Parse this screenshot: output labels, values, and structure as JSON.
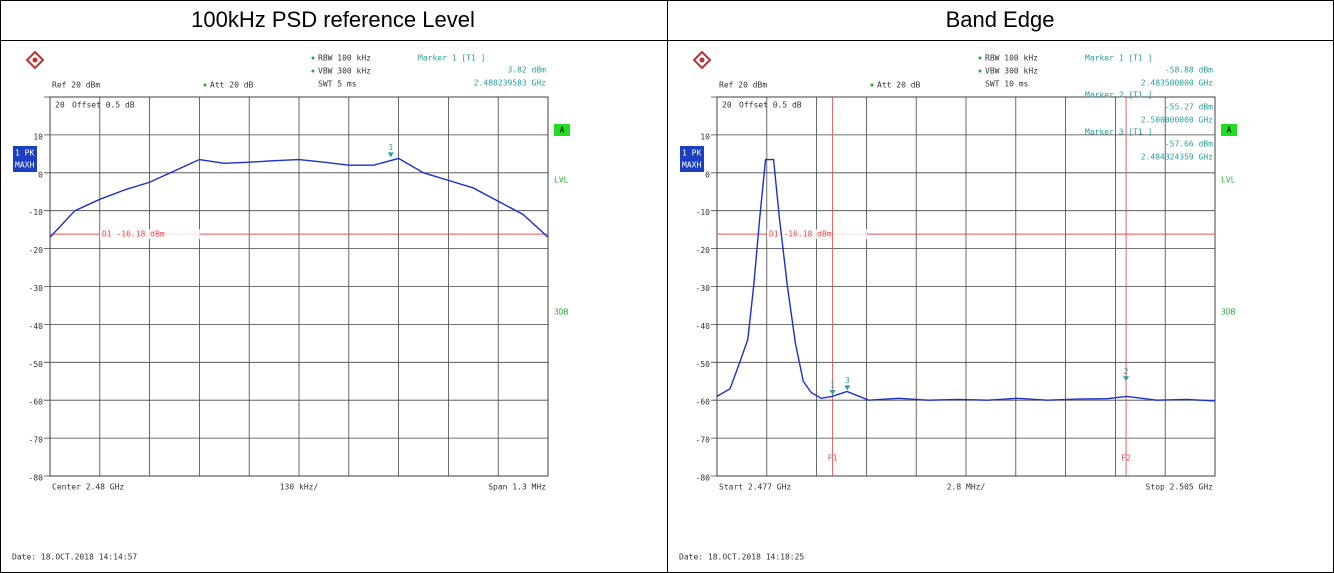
{
  "chart_data": [
    {
      "type": "line",
      "title": "100kHz PSD reference Level",
      "ref": "Ref  20 dBm",
      "att": "Att  20 dB",
      "offset": "Offset  0.5 dB",
      "rbw": "RBW 100 kHz",
      "vbw": "VBW 300 kHz",
      "swt": "SWT 5 ms",
      "trace_label": [
        "1 PK",
        "MAXH"
      ],
      "side_labels": [
        "A",
        "LVL",
        "3DB"
      ],
      "x_labels": [
        "Center 2.48 GHz",
        "130 kHz/",
        "Span 1.3 MHz"
      ],
      "date": "Date: 18.OCT.2018  14:14:57",
      "xlim": [
        2.47935,
        2.48065
      ],
      "xticks": [
        2.47935,
        2.47948,
        2.47961,
        2.47974,
        2.47987,
        2.48,
        2.48013,
        2.48026,
        2.48039,
        2.48052,
        2.48065
      ],
      "ylim": [
        -80,
        20
      ],
      "yticks": [
        20,
        10,
        0,
        -10,
        -20,
        -30,
        -40,
        -50,
        -60,
        -70,
        -80
      ],
      "series": [
        {
          "name": "1 PK",
          "color": "#1a2fd0",
          "x": [
            2.47935,
            2.479415,
            2.47948,
            2.479545,
            2.47961,
            2.479675,
            2.47974,
            2.479805,
            2.47987,
            2.479935,
            2.48,
            2.480065,
            2.48013,
            2.480195,
            2.48026,
            2.480325,
            2.48039,
            2.480455,
            2.48052,
            2.480585,
            2.48065
          ],
          "values": [
            -17,
            -10,
            -7,
            -4.5,
            -2.5,
            0.5,
            3.5,
            2.5,
            2.8,
            3.2,
            3.5,
            2.8,
            2,
            2,
            3.8,
            0,
            -2,
            -4,
            -7.5,
            -11,
            -17
          ]
        }
      ],
      "display_line": {
        "label": "D1  -16.18 dBm",
        "value": -16.18
      },
      "freq_lines": [],
      "markers": [
        {
          "id": "1",
          "label": "Marker 1 [T1 ]",
          "value": 3.82,
          "value_label": "3.82 dBm",
          "x": 2.480239583,
          "x_label": "2.480239583 GHz"
        }
      ]
    },
    {
      "type": "line",
      "title": "Band Edge",
      "ref": "Ref  20 dBm",
      "att": "Att  20 dB",
      "offset": "Offset  0.5 dB",
      "rbw": "RBW 100 kHz",
      "vbw": "VBW 300 kHz",
      "swt": "SWT 10 ms",
      "trace_label": [
        "1 PK",
        "MAXH"
      ],
      "side_labels": [
        "A",
        "LVL",
        "3DB"
      ],
      "x_labels": [
        "Start 2.477 GHz",
        "2.8 MHz/",
        "Stop 2.505 GHz"
      ],
      "date": "Date: 18.OCT.2018  14:18:25",
      "xlim": [
        2.477,
        2.505
      ],
      "xticks": [
        2.477,
        2.4798,
        2.4826,
        2.4854,
        2.4882,
        2.491,
        2.4938,
        2.4966,
        2.4994,
        2.5022,
        2.505
      ],
      "ylim": [
        -80,
        20
      ],
      "yticks": [
        20,
        10,
        0,
        -10,
        -20,
        -30,
        -40,
        -50,
        -60,
        -70,
        -80
      ],
      "series": [
        {
          "name": "1 PK",
          "color": "#1a2fd0",
          "x": [
            2.477,
            2.47773,
            2.47828,
            2.47873,
            2.47906,
            2.4794,
            2.47973,
            2.48018,
            2.48051,
            2.48096,
            2.48141,
            2.48185,
            2.4823,
            2.48286,
            2.48347,
            2.48431,
            2.48553,
            2.48721,
            2.48888,
            2.49056,
            2.49223,
            2.4939,
            2.49558,
            2.49725,
            2.49892,
            2.50004,
            2.50171,
            2.50339,
            2.505
          ],
          "values": [
            -59,
            -57,
            -50,
            -44,
            -30,
            -12,
            3.5,
            3.5,
            -12,
            -30,
            -45,
            -55,
            -58,
            -59.5,
            -59,
            -57.7,
            -60,
            -59.5,
            -60,
            -59.8,
            -60,
            -59.5,
            -60,
            -59.7,
            -59.6,
            -59,
            -60,
            -59.8,
            -60.2
          ]
        }
      ],
      "display_line": {
        "label": "D1  -16.18 dBm",
        "value": -16.18
      },
      "freq_lines": [
        {
          "label": "F1",
          "value": 2.4835
        },
        {
          "label": "F2",
          "value": 2.5
        }
      ],
      "markers": [
        {
          "id": "1",
          "label": "Marker 1 [T1 ]",
          "value": -58.88,
          "value_label": "-58.88 dBm",
          "x": 2.4835,
          "x_label": "2.483500000 GHz"
        },
        {
          "id": "2",
          "label": "Marker 2 [T1 ]",
          "value": -55.27,
          "value_label": "-55.27 dBm",
          "x": 2.5,
          "x_label": "2.500000000 GHz"
        },
        {
          "id": "3",
          "label": "Marker 3 [T1 ]",
          "value": -57.66,
          "value_label": "-57.66 dBm",
          "x": 2.484324359,
          "x_label": "2.484324359 GHz"
        }
      ]
    }
  ]
}
